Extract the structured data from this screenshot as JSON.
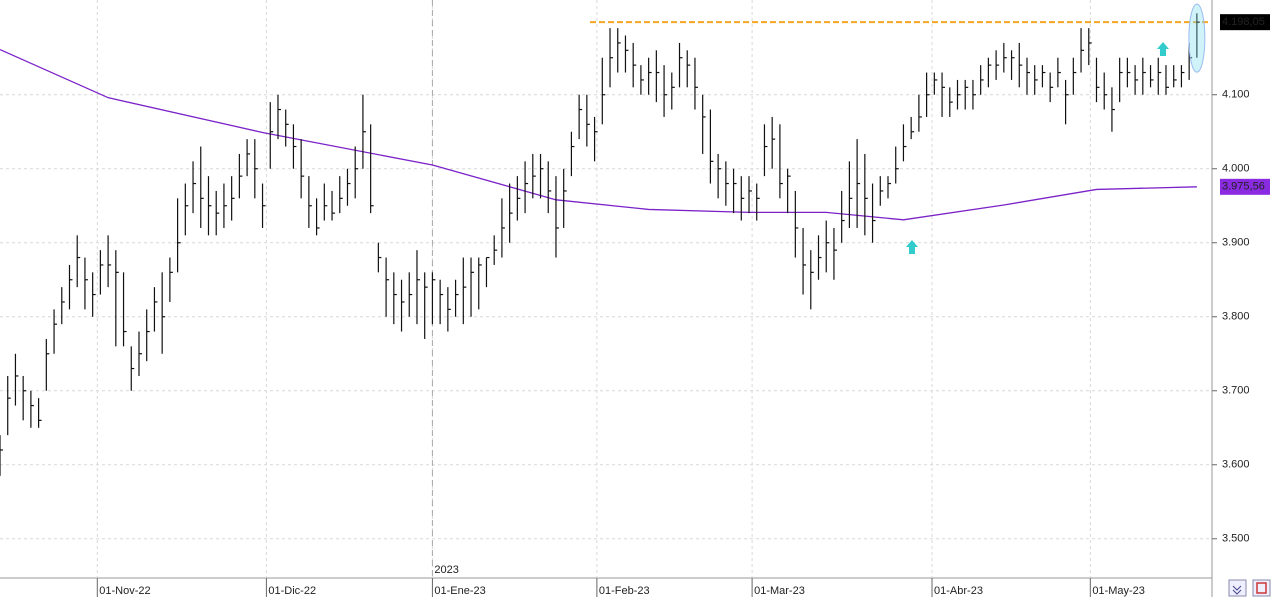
{
  "chart_data": {
    "type": "hlc",
    "ylim": [
      3447,
      4228
    ],
    "yticks": [
      {
        "value": 3500,
        "label": "3.500"
      },
      {
        "value": 3600,
        "label": "3.600"
      },
      {
        "value": 3700,
        "label": "3.700"
      },
      {
        "value": 3800,
        "label": "3.800"
      },
      {
        "value": 3900,
        "label": "3.900"
      },
      {
        "value": 4000,
        "label": "4.000"
      },
      {
        "value": 4100,
        "label": "4.100"
      }
    ],
    "xlim": [
      0,
      156.7
    ],
    "xticks": [
      {
        "value": 12.6,
        "label": "01-Nov-22"
      },
      {
        "value": 34.5,
        "label": "01-Dic-22"
      },
      {
        "value": 56,
        "label": "01-Ene-23"
      },
      {
        "value": 77.3,
        "label": "01-Feb-23"
      },
      {
        "value": 97.4,
        "label": "01-Mar-23"
      },
      {
        "value": 120.7,
        "label": "01-Abr-23"
      },
      {
        "value": 141.2,
        "label": "01-May-23"
      }
    ],
    "year_marker": {
      "value": 56,
      "label": "2023"
    },
    "grid": true,
    "color": "#111111",
    "high": [
      3640,
      3720,
      3750,
      3720,
      3700,
      3690,
      3770,
      3810,
      3840,
      3870,
      3910,
      3880,
      3860,
      3890,
      3910,
      3890,
      3860,
      3760,
      3780,
      3810,
      3840,
      3860,
      3880,
      3960,
      3980,
      4010,
      4030,
      3990,
      3970,
      3980,
      3990,
      4020,
      4040,
      4040,
      3980,
      4090,
      4100,
      4080,
      4060,
      4040,
      3990,
      3960,
      3980,
      3970,
      3990,
      4000,
      4030,
      4100,
      4060,
      3900,
      3880,
      3860,
      3850,
      3860,
      3890,
      3860,
      3860,
      3850,
      3840,
      3850,
      3880,
      3880,
      3880,
      3880,
      3910,
      3960,
      3980,
      3990,
      4010,
      4020,
      4020,
      4010,
      3990,
      4000,
      4050,
      4100,
      4100,
      4070,
      4150,
      4190,
      4190,
      4180,
      4170,
      4140,
      4150,
      4160,
      4140,
      4130,
      4170,
      4160,
      4150,
      4100,
      4080,
      4020,
      4010,
      4000,
      3990,
      3990,
      3980,
      4060,
      4070,
      4060,
      4000,
      3970,
      3920,
      3890,
      3910,
      3930,
      3920,
      3970,
      4010,
      4040,
      4020,
      3980,
      3990,
      3990,
      4030,
      4060,
      4070,
      4100,
      4130,
      4130,
      4130,
      4110,
      4120,
      4120,
      4120,
      4140,
      4150,
      4160,
      4170,
      4160,
      4170,
      4150,
      4140,
      4140,
      4130,
      4150,
      4120,
      4150,
      4190,
      4190,
      4150,
      4130,
      4110,
      4150,
      4150,
      4140,
      4150,
      4140,
      4150,
      4140,
      4140,
      4140,
      4170,
      4210
    ],
    "low": [
      3585,
      3640,
      3680,
      3660,
      3650,
      3650,
      3700,
      3750,
      3790,
      3810,
      3840,
      3810,
      3800,
      3830,
      3840,
      3760,
      3760,
      3700,
      3720,
      3740,
      3780,
      3750,
      3820,
      3860,
      3910,
      3940,
      3920,
      3910,
      3910,
      3920,
      3930,
      3960,
      3990,
      3960,
      3920,
      4000,
      4040,
      4030,
      4000,
      3960,
      3920,
      3910,
      3930,
      3930,
      3940,
      3950,
      3960,
      4000,
      3940,
      3860,
      3800,
      3790,
      3780,
      3800,
      3790,
      3770,
      3790,
      3790,
      3780,
      3800,
      3790,
      3800,
      3810,
      3840,
      3870,
      3880,
      3900,
      3930,
      3940,
      3960,
      3960,
      3940,
      3880,
      3920,
      3990,
      4040,
      4030,
      4010,
      4060,
      4110,
      4130,
      4130,
      4110,
      4100,
      4100,
      4090,
      4070,
      4080,
      4110,
      4110,
      4080,
      4020,
      3980,
      3960,
      3950,
      3940,
      3930,
      3940,
      3930,
      3990,
      4000,
      3960,
      3940,
      3880,
      3830,
      3810,
      3850,
      3860,
      3850,
      3900,
      3920,
      3920,
      3910,
      3900,
      3950,
      3960,
      3980,
      4010,
      4040,
      4050,
      4070,
      4100,
      4070,
      4070,
      4080,
      4080,
      4080,
      4100,
      4110,
      4120,
      4130,
      4120,
      4110,
      4100,
      4100,
      4110,
      4090,
      4110,
      4060,
      4100,
      4130,
      4140,
      4090,
      4080,
      4050,
      4090,
      4110,
      4100,
      4100,
      4110,
      4100,
      4100,
      4110,
      4110,
      4120,
      4150
    ],
    "close": [
      3620,
      3690,
      3720,
      3700,
      3680,
      3660,
      3750,
      3790,
      3820,
      3850,
      3880,
      3850,
      3830,
      3870,
      3870,
      3860,
      3780,
      3730,
      3750,
      3780,
      3820,
      3800,
      3860,
      3900,
      3950,
      3980,
      3960,
      3950,
      3940,
      3950,
      3960,
      3990,
      4020,
      4000,
      3950,
      4050,
      4080,
      4060,
      4030,
      3990,
      3950,
      3920,
      3950,
      3940,
      3960,
      3980,
      4000,
      4050,
      3950,
      3880,
      3850,
      3830,
      3820,
      3830,
      3850,
      3840,
      3850,
      3830,
      3810,
      3830,
      3840,
      3860,
      3870,
      3880,
      3890,
      3920,
      3940,
      3960,
      3980,
      3990,
      4000,
      3970,
      3920,
      3970,
      4030,
      4080,
      4060,
      4050,
      4100,
      4150,
      4170,
      4160,
      4140,
      4120,
      4130,
      4130,
      4100,
      4110,
      4150,
      4140,
      4110,
      4070,
      4010,
      4000,
      3980,
      3980,
      3960,
      3970,
      3960,
      4030,
      4040,
      3980,
      3990,
      3920,
      3870,
      3860,
      3880,
      3900,
      3890,
      3930,
      3960,
      3980,
      3960,
      3930,
      3970,
      3980,
      4000,
      4030,
      4050,
      4070,
      4100,
      4120,
      4110,
      4090,
      4100,
      4110,
      4100,
      4120,
      4140,
      4140,
      4150,
      4150,
      4140,
      4130,
      4120,
      4130,
      4110,
      4130,
      4100,
      4130,
      4160,
      4170,
      4110,
      4100,
      4080,
      4130,
      4130,
      4120,
      4130,
      4120,
      4130,
      4110,
      4120,
      4130,
      4150,
      4198.05
    ],
    "moving_average": {
      "color": "#7b22c9",
      "x": [
        0,
        14,
        34,
        56,
        72,
        84,
        97,
        107,
        117,
        130,
        142,
        155
      ],
      "values": [
        4161,
        4096,
        4049,
        4005,
        3958,
        3945,
        3941,
        3941,
        3931,
        3951,
        3972,
        3975.56
      ]
    },
    "last_price": {
      "value": 4198.05,
      "label": "4.198,05",
      "color": "#000000"
    },
    "ma_price": {
      "value": 3975.56,
      "label": "3.975,56",
      "color": "#8a2be2"
    },
    "level_color": "#f5a623"
  }
}
